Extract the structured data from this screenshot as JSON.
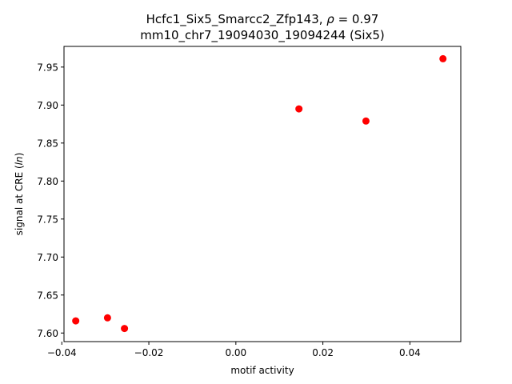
{
  "chart_data": {
    "type": "scatter",
    "title_line1": "Hcfc1_Six5_Smarcc2_Zfp143, ",
    "title_rho_symbol": "ρ",
    "title_rho_value": " = 0.97",
    "title_line2": "mm10_chr7_19094030_19094244 (Six5)",
    "xlabel": "motif activity",
    "ylabel_prefix": "signal at CRE (",
    "ylabel_italic": "ln",
    "ylabel_suffix": ")",
    "xlim": [
      -0.0395,
      0.0517
    ],
    "ylim": [
      7.5887,
      7.9772
    ],
    "xticks": [
      -0.04,
      -0.02,
      0.0,
      0.02,
      0.04
    ],
    "xtick_labels": [
      "−0.04",
      "−0.02",
      "0.00",
      "0.02",
      "0.04"
    ],
    "yticks": [
      7.6,
      7.65,
      7.7,
      7.75,
      7.8,
      7.85,
      7.9,
      7.95
    ],
    "ytick_labels": [
      "7.60",
      "7.65",
      "7.70",
      "7.75",
      "7.80",
      "7.85",
      "7.90",
      "7.95"
    ],
    "point_color": "#ff0000",
    "grid": false,
    "points": [
      {
        "x": -0.0368,
        "y": 7.616
      },
      {
        "x": -0.0295,
        "y": 7.62
      },
      {
        "x": -0.0256,
        "y": 7.606
      },
      {
        "x": 0.0145,
        "y": 7.895
      },
      {
        "x": 0.0299,
        "y": 7.879
      },
      {
        "x": 0.0476,
        "y": 7.961
      }
    ]
  }
}
